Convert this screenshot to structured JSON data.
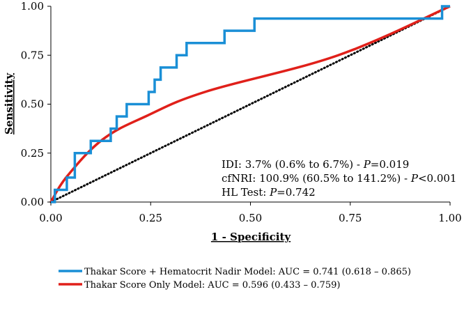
{
  "chart_data": {
    "type": "line",
    "title": "",
    "xlabel": "1 - Specificity",
    "ylabel": "Sensitivity",
    "xlim": [
      0,
      1
    ],
    "ylim": [
      0,
      1
    ],
    "xticks": [
      "0.00",
      "0.25",
      "0.50",
      "0.75",
      "1.00"
    ],
    "yticks": [
      "0.00",
      "0.25",
      "0.50",
      "0.75",
      "1.00"
    ],
    "tick_values": [
      0,
      0.25,
      0.5,
      0.75,
      1
    ],
    "annotations": {
      "idi": {
        "prefix": "IDI: 3.7% (0.6% to 6.7%) - ",
        "p": "P",
        "suffix": "=0.019"
      },
      "cfnri": {
        "prefix": "cfNRI: 100.9% (60.5% to 141.2%) - ",
        "p": "P",
        "suffix": "<0.001"
      },
      "hl": {
        "prefix": "HL Test: ",
        "p": "P",
        "suffix": "=0.742"
      }
    },
    "series": [
      {
        "name": "Thakar Score + Hematocrit Nadir Model:  AUC = 0.741 (0.618 – 0.865)",
        "color": "#1a8fd6",
        "style": "step",
        "x": [
          0.0,
          0.01,
          0.01,
          0.04,
          0.04,
          0.06,
          0.06,
          0.1,
          0.1,
          0.15,
          0.15,
          0.165,
          0.165,
          0.19,
          0.19,
          0.245,
          0.245,
          0.26,
          0.26,
          0.275,
          0.275,
          0.315,
          0.315,
          0.34,
          0.34,
          0.435,
          0.435,
          0.51,
          0.51,
          0.98,
          0.98,
          1.0
        ],
        "y": [
          0.0,
          0.0,
          0.0625,
          0.0625,
          0.125,
          0.125,
          0.25,
          0.25,
          0.3125,
          0.3125,
          0.375,
          0.375,
          0.4375,
          0.4375,
          0.5,
          0.5,
          0.5625,
          0.5625,
          0.625,
          0.625,
          0.6875,
          0.6875,
          0.75,
          0.75,
          0.8125,
          0.8125,
          0.875,
          0.875,
          0.9375,
          0.9375,
          1.0,
          1.0
        ]
      },
      {
        "name": "Thakar Score Only Model:  AUC = 0.596 (0.433 – 0.759)",
        "color": "#e0201a",
        "style": "smooth",
        "x": [
          0.0,
          0.04,
          0.13,
          0.24,
          0.39,
          0.72,
          1.0
        ],
        "y": [
          0.0,
          0.13,
          0.32,
          0.44,
          0.565,
          0.75,
          1.0
        ]
      },
      {
        "name": "Reference",
        "color": "#000000",
        "style": "dotted",
        "x": [
          0,
          1
        ],
        "y": [
          0,
          1
        ]
      }
    ]
  }
}
